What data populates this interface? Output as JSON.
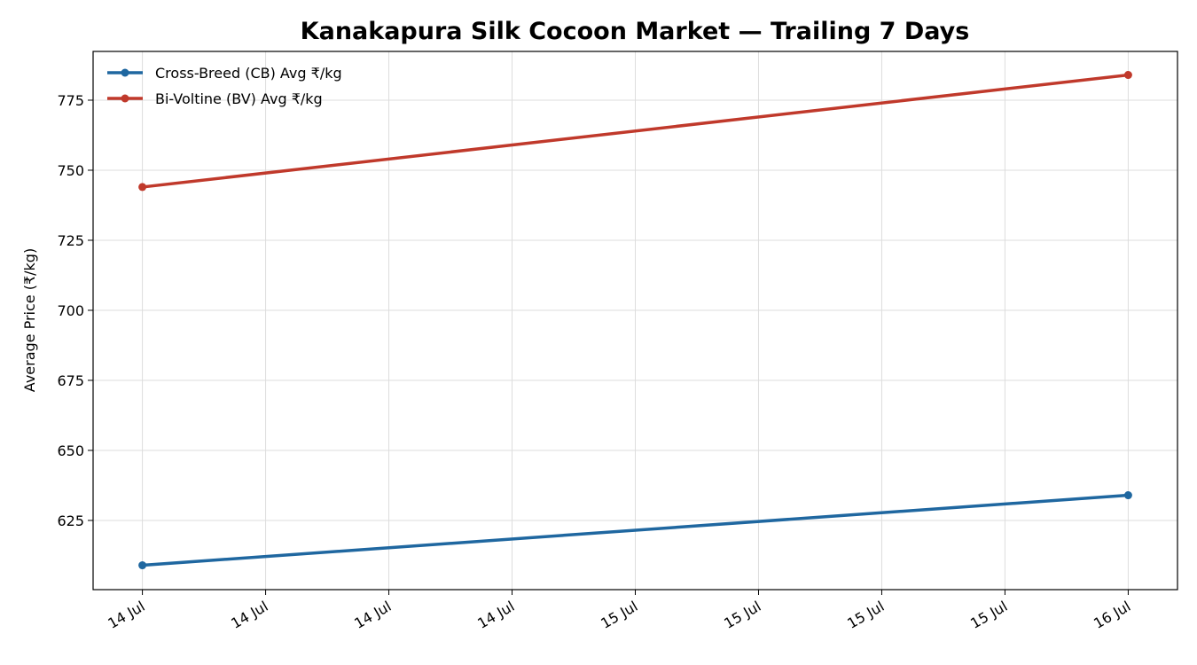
{
  "chart_data": {
    "type": "line",
    "title": "Kanakapura Silk Cocoon Market — Trailing 7 Days",
    "y_label": "Average Price (₹/kg)",
    "x": [
      14,
      16
    ],
    "series": [
      {
        "name": "Cross-Breed (CB) Avg ₹/kg",
        "color": "#1f67a0",
        "values": [
          609,
          634
        ]
      },
      {
        "name": "Bi-Voltine (BV) Avg ₹/kg",
        "color": "#c0392b",
        "values": [
          744,
          784
        ]
      }
    ],
    "xlim": [
      13.9,
      16.1
    ],
    "xticks": [
      {
        "value": 14,
        "label": "14 Jul"
      },
      {
        "value": 14.25,
        "label": "14 Jul"
      },
      {
        "value": 14.5,
        "label": "14 Jul"
      },
      {
        "value": 14.75,
        "label": "14 Jul"
      },
      {
        "value": 15,
        "label": "15 Jul"
      },
      {
        "value": 15.25,
        "label": "15 Jul"
      },
      {
        "value": 15.5,
        "label": "15 Jul"
      },
      {
        "value": 15.75,
        "label": "15 Jul"
      },
      {
        "value": 16,
        "label": "16 Jul"
      }
    ],
    "ylim": [
      600.3,
      792.4
    ],
    "yticks": [
      625,
      650,
      675,
      700,
      725,
      750,
      775
    ],
    "grid": true,
    "legend": "upper-left"
  }
}
